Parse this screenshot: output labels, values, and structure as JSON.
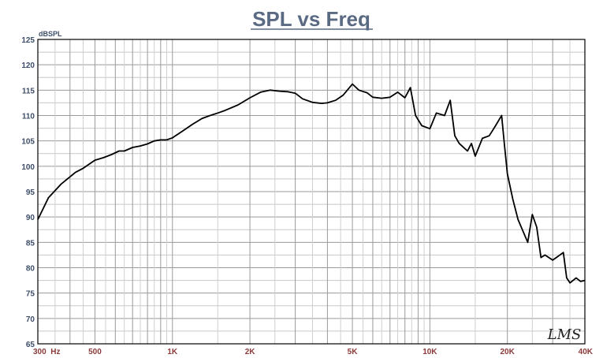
{
  "chart_data": {
    "type": "line",
    "title": "SPL vs Freq",
    "ylabel": "dBSPL",
    "xlabel": "",
    "xscale": "log",
    "xlim": [
      300,
      40000
    ],
    "ylim": [
      65,
      125
    ],
    "grid": true,
    "y_ticks": [
      65,
      70,
      75,
      80,
      85,
      90,
      95,
      100,
      105,
      110,
      115,
      120,
      125
    ],
    "x_tick_labels": [
      {
        "value": 300,
        "label": "300  Hz"
      },
      {
        "value": 500,
        "label": "500"
      },
      {
        "value": 1000,
        "label": "1K"
      },
      {
        "value": 2000,
        "label": "2K"
      },
      {
        "value": 5000,
        "label": "5K"
      },
      {
        "value": 10000,
        "label": "10K"
      },
      {
        "value": 20000,
        "label": "20K"
      },
      {
        "value": 40000,
        "label": "40K"
      }
    ],
    "series": [
      {
        "color": "#000000",
        "x": [
          300,
          330,
          370,
          420,
          450,
          500,
          540,
          580,
          620,
          650,
          700,
          750,
          800,
          850,
          900,
          950,
          1000,
          1100,
          1200,
          1300,
          1400,
          1500,
          1600,
          1800,
          2000,
          2200,
          2400,
          2600,
          2800,
          3000,
          3200,
          3500,
          3800,
          4000,
          4300,
          4600,
          5000,
          5300,
          5700,
          6000,
          6500,
          7000,
          7500,
          8000,
          8400,
          8800,
          9300,
          10000,
          10600,
          11400,
          12000,
          12500,
          13000,
          14000,
          14500,
          15000,
          16000,
          17000,
          17500,
          18000,
          19000,
          19500,
          20000,
          21000,
          22000,
          24000,
          25000,
          26000,
          27000,
          28000,
          30000,
          32000,
          33000,
          34000,
          35000,
          37000,
          38500,
          40000
        ],
        "y": [
          89.5,
          93.8,
          96.5,
          98.8,
          99.6,
          101.2,
          101.7,
          102.3,
          103,
          103,
          103.7,
          104,
          104.4,
          105,
          105.2,
          105.2,
          105.6,
          107,
          108.3,
          109.4,
          110,
          110.5,
          111,
          112.1,
          113.5,
          114.6,
          115,
          114.8,
          114.7,
          114.4,
          113.3,
          112.6,
          112.4,
          112.5,
          113,
          114,
          116.2,
          115,
          114.5,
          113.6,
          113.4,
          113.6,
          114.6,
          113.5,
          115.5,
          110,
          108,
          107.4,
          110.5,
          110,
          113,
          106,
          104.5,
          103,
          104.5,
          102,
          105.5,
          106,
          107,
          108,
          110,
          104,
          98.5,
          93.5,
          89.5,
          85,
          90.5,
          88,
          82,
          82.5,
          81.5,
          82.5,
          83,
          78,
          77,
          78,
          77.3,
          77.5
        ]
      }
    ]
  },
  "logo_text": "LMS"
}
